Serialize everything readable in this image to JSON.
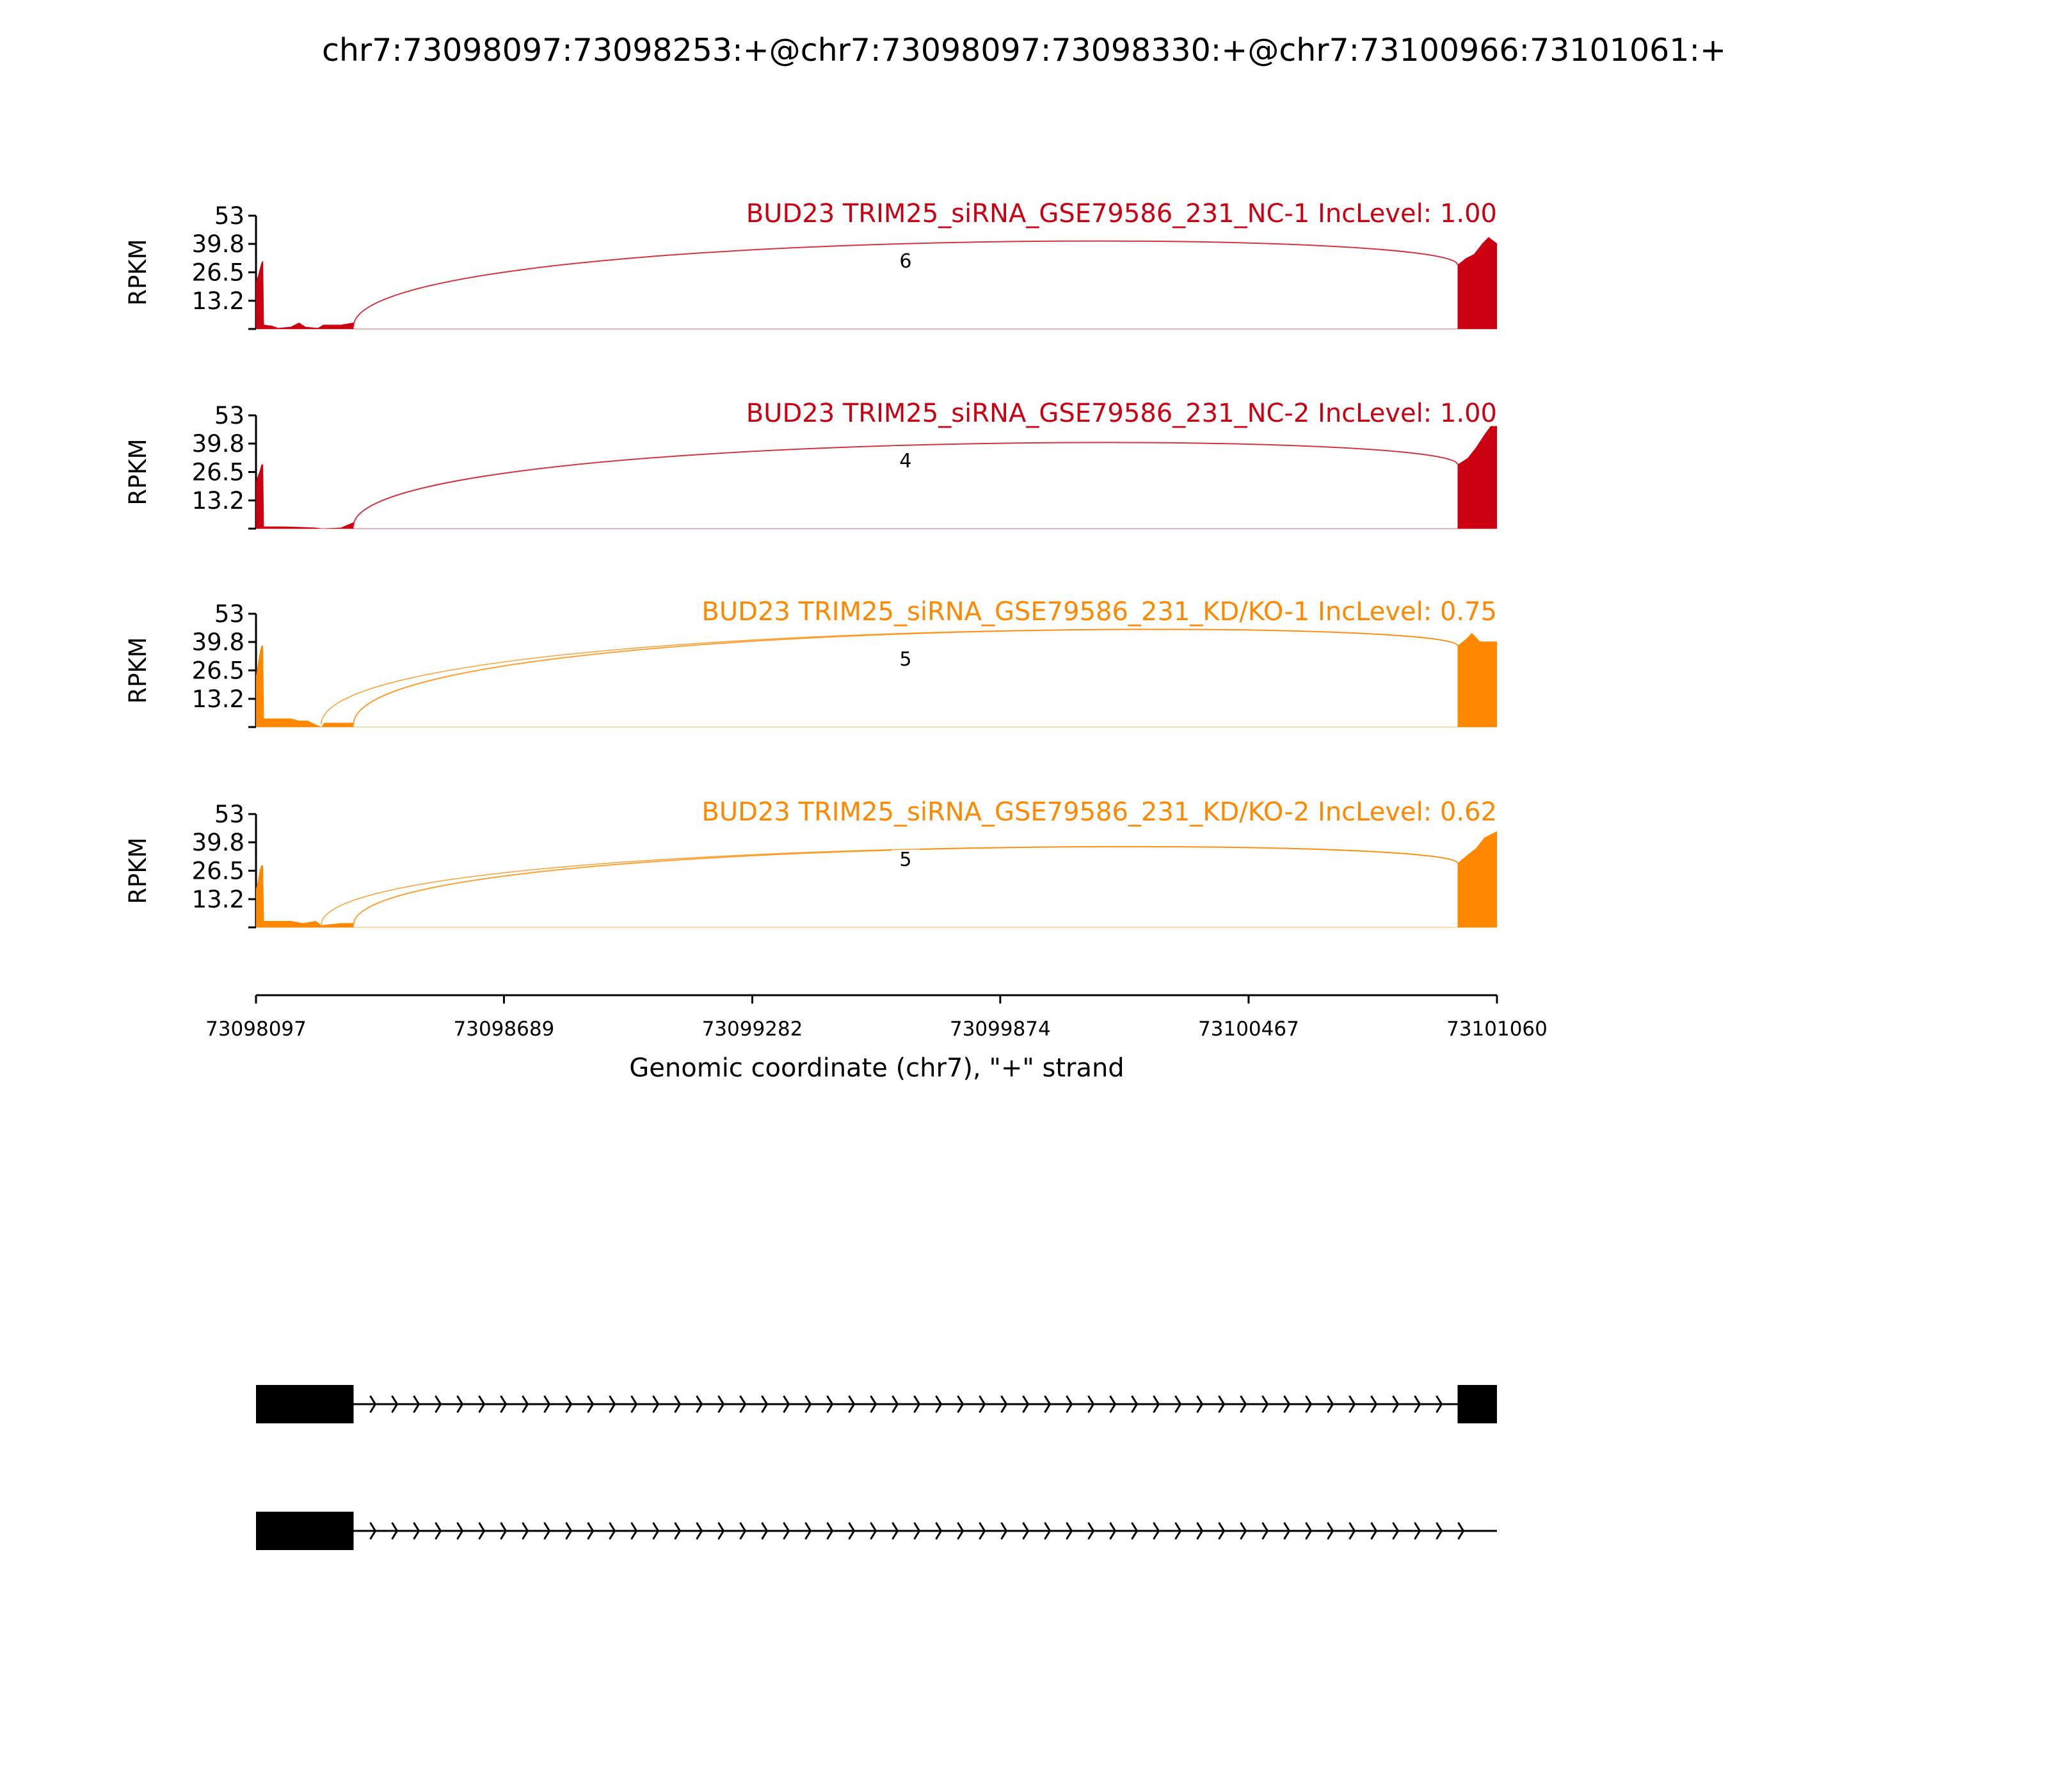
{
  "chart_data": {
    "type": "area",
    "title": "chr7:73098097:73098253:+@chr7:73098097:73098330:+@chr7:73100966:73101061:+",
    "xlabel": "Genomic coordinate (chr7), \"+\" strand",
    "xlim": [
      73098097,
      73101060
    ],
    "xticks": [
      "73098097",
      "73098689",
      "73099282",
      "73099874",
      "73100467",
      "73101060"
    ],
    "ylabel": "RPKM",
    "ylim": [
      0,
      53
    ],
    "yticks": [
      "13.2",
      "26.5",
      "39.8",
      "53"
    ],
    "panels": [
      {
        "label": "BUD23 TRIM25_siRNA_GSE79586_231_NC-1 IncLevel: 1.00",
        "color": "#cc0011",
        "coverage": [
          [
            73098097,
            22
          ],
          [
            73098102,
            25
          ],
          [
            73098106,
            28
          ],
          [
            73098110,
            31
          ],
          [
            73098114,
            32
          ],
          [
            73098116,
            2
          ],
          [
            73098135,
            1.5
          ],
          [
            73098150,
            0.5
          ],
          [
            73098180,
            1
          ],
          [
            73098200,
            3
          ],
          [
            73098215,
            1
          ],
          [
            73098245,
            0.5
          ],
          [
            73098258,
            2
          ],
          [
            73098300,
            2
          ],
          [
            73098330,
            3
          ],
          [
            73100966,
            30
          ],
          [
            73100985,
            33
          ],
          [
            73101005,
            35
          ],
          [
            73101025,
            40
          ],
          [
            73101040,
            43
          ],
          [
            73101060,
            40
          ]
        ],
        "junctions": [
          {
            "start": 73098330,
            "end": 73100966,
            "count": "6",
            "peak": 40
          }
        ]
      },
      {
        "label": "BUD23 TRIM25_siRNA_GSE79586_231_NC-2 IncLevel: 1.00",
        "color": "#cc0011",
        "coverage": [
          [
            73098097,
            22
          ],
          [
            73098102,
            25
          ],
          [
            73098106,
            27
          ],
          [
            73098110,
            30
          ],
          [
            73098114,
            30
          ],
          [
            73098116,
            1
          ],
          [
            73098160,
            1
          ],
          [
            73098200,
            0.8
          ],
          [
            73098240,
            0.5
          ],
          [
            73098255,
            0
          ],
          [
            73098300,
            0.5
          ],
          [
            73098330,
            3
          ],
          [
            73100966,
            30
          ],
          [
            73100990,
            33
          ],
          [
            73101010,
            38
          ],
          [
            73101030,
            44
          ],
          [
            73101045,
            48
          ],
          [
            73101060,
            48
          ]
        ],
        "junctions": [
          {
            "start": 73098330,
            "end": 73100966,
            "count": "4",
            "peak": 39
          }
        ]
      },
      {
        "label": "BUD23 TRIM25_siRNA_GSE79586_231_KD/KO-1 IncLevel: 0.75",
        "color": "#ff8800",
        "coverage": [
          [
            73098097,
            24
          ],
          [
            73098102,
            30
          ],
          [
            73098106,
            35
          ],
          [
            73098110,
            38
          ],
          [
            73098114,
            38
          ],
          [
            73098116,
            4
          ],
          [
            73098180,
            4
          ],
          [
            73098200,
            3
          ],
          [
            73098220,
            3
          ],
          [
            73098253,
            0
          ],
          [
            73098260,
            2
          ],
          [
            73098330,
            2
          ],
          [
            73100966,
            38
          ],
          [
            73100985,
            41
          ],
          [
            73101000,
            44
          ],
          [
            73101020,
            40
          ],
          [
            73101060,
            40
          ]
        ],
        "junctions": [
          {
            "start": 73098330,
            "end": 73100966,
            "count": "5",
            "peak": 43
          },
          {
            "start": 73098253,
            "end": 73100966,
            "count": "",
            "peak": 43
          }
        ]
      },
      {
        "label": "BUD23 TRIM25_siRNA_GSE79586_231_KD/KO-2 IncLevel: 0.62",
        "color": "#ff8800",
        "coverage": [
          [
            73098097,
            18
          ],
          [
            73098102,
            22
          ],
          [
            73098106,
            27
          ],
          [
            73098110,
            29
          ],
          [
            73098114,
            29
          ],
          [
            73098116,
            3
          ],
          [
            73098180,
            3
          ],
          [
            73098210,
            2
          ],
          [
            73098240,
            3
          ],
          [
            73098253,
            1
          ],
          [
            73098300,
            2
          ],
          [
            73098330,
            2
          ],
          [
            73100966,
            30
          ],
          [
            73100990,
            34
          ],
          [
            73101010,
            37
          ],
          [
            73101030,
            42
          ],
          [
            73101060,
            45
          ]
        ],
        "junctions": [
          {
            "start": 73098330,
            "end": 73100966,
            "count": "5",
            "peak": 36
          },
          {
            "start": 73098253,
            "end": 73100966,
            "count": "",
            "peak": 36
          }
        ]
      }
    ],
    "gene_models": [
      {
        "exons": [
          [
            73098097,
            73098330
          ],
          [
            73100966,
            73101060
          ]
        ],
        "line_end": 73101060
      },
      {
        "exons": [
          [
            73098097,
            73098330
          ]
        ],
        "line_end": 73101060
      }
    ]
  }
}
